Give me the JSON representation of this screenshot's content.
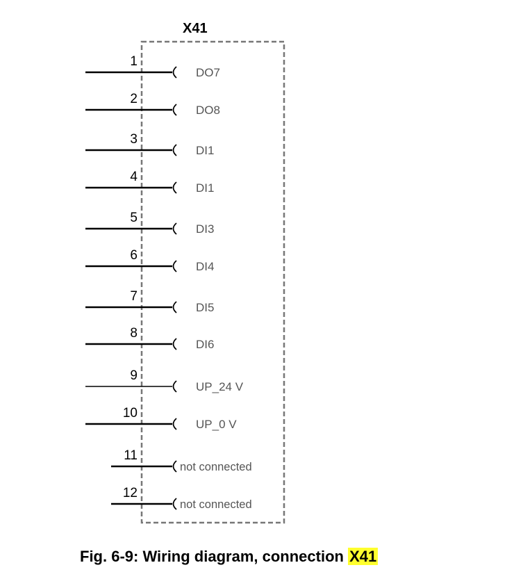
{
  "connector": {
    "name": "X41",
    "pins": [
      {
        "number": "1",
        "label": "DO7"
      },
      {
        "number": "2",
        "label": "DO8"
      },
      {
        "number": "3",
        "label": "DI1"
      },
      {
        "number": "4",
        "label": "DI1"
      },
      {
        "number": "5",
        "label": "DI3"
      },
      {
        "number": "6",
        "label": "DI4"
      },
      {
        "number": "7",
        "label": "DI5"
      },
      {
        "number": "8",
        "label": "DI6"
      },
      {
        "number": "9",
        "label": "UP_24 V"
      },
      {
        "number": "10",
        "label": "UP_0 V"
      },
      {
        "number": "11",
        "label": "not connected"
      },
      {
        "number": "12",
        "label": "not connected"
      }
    ]
  },
  "caption": {
    "prefix": "Fig. 6-9: Wiring diagram, connection ",
    "highlight": "X41"
  },
  "colors": {
    "box_border": "#777777",
    "label": "#555555",
    "highlight": "#ffff2e"
  }
}
